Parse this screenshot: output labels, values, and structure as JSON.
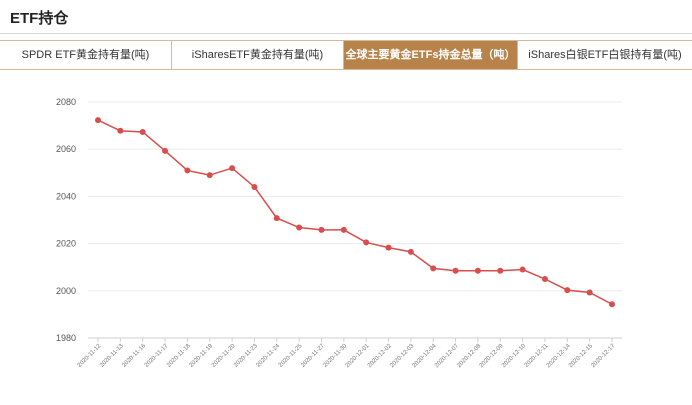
{
  "header": {
    "title": "ETF持仓"
  },
  "tabs": [
    {
      "label": "SPDR ETF黄金持有量(吨)",
      "active": false
    },
    {
      "label": "iSharesETF黄金持有量(吨)",
      "active": false
    },
    {
      "label": "全球主要黄金ETFs持金总量（吨）",
      "active": true
    },
    {
      "label": "iShares白银ETF白银持有量(吨)",
      "active": false
    }
  ],
  "colors": {
    "accent": "#b8834a",
    "line": "#d94d4d"
  },
  "chart_data": {
    "type": "line",
    "x": [
      "2020-11-12",
      "2020-11-13",
      "2020-11-16",
      "2020-11-17",
      "2020-11-18",
      "2020-11-19",
      "2020-11-20",
      "2020-11-23",
      "2020-11-24",
      "2020-11-25",
      "2020-11-27",
      "2020-11-30",
      "2020-12-01",
      "2020-12-02",
      "2020-12-03",
      "2020-12-04",
      "2020-12-07",
      "2020-12-08",
      "2020-12-09",
      "2020-12-10",
      "2020-12-11",
      "2020-12-14",
      "2020-12-15",
      "2020-12-17"
    ],
    "series": [
      {
        "values": [
          2072.3,
          2067.8,
          2067.3,
          2059.3,
          2051.0,
          2049.0,
          2052.0,
          2044.0,
          2030.8,
          2026.8,
          2025.8,
          2025.8,
          2020.5,
          2018.3,
          2016.5,
          2009.5,
          2008.5,
          2008.5,
          2008.5,
          2009.0,
          2005.0,
          2000.3,
          1999.3,
          1994.3
        ]
      }
    ],
    "yticks": [
      1980,
      2000,
      2020,
      2040,
      2060,
      2080
    ],
    "ylim": [
      1980,
      2080
    ],
    "grid": true
  }
}
